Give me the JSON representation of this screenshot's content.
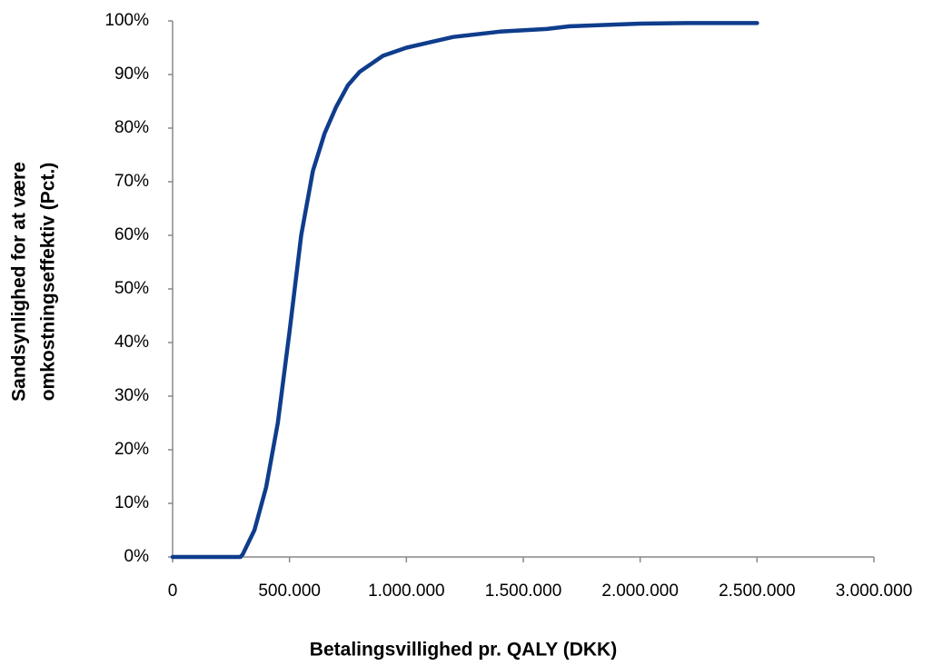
{
  "chart_data": {
    "type": "line",
    "xlabel": "Betalingsvillighed pr. QALY (DKK)",
    "ylabel": [
      "Sandsynlighed for at være",
      "omkostningseffektiv (Pct.)"
    ],
    "x": [
      0,
      100000,
      200000,
      290000,
      300000,
      350000,
      400000,
      450000,
      500000,
      550000,
      600000,
      650000,
      700000,
      750000,
      800000,
      900000,
      1000000,
      1100000,
      1200000,
      1400000,
      1600000,
      1700000,
      2000000,
      2200000,
      2500000
    ],
    "series": [
      {
        "color": "#0f3d8c",
        "values": [
          0,
          0,
          0,
          0,
          0.5,
          5,
          13,
          25,
          42,
          60,
          72,
          79,
          84,
          88,
          90.5,
          93.5,
          95,
          96,
          97,
          98,
          98.5,
          99,
          99.5,
          99.6,
          99.6
        ]
      }
    ],
    "xlim": [
      0,
      3000000
    ],
    "xticks": [
      0,
      {
        "value": 500000,
        "label": "500.000"
      },
      {
        "value": 1000000,
        "label": "1.000.000"
      },
      {
        "value": 1500000,
        "label": "1.500.000"
      },
      {
        "value": 2000000,
        "label": "2.000.000"
      },
      {
        "value": 2500000,
        "label": "2.500.000"
      },
      {
        "value": 3000000,
        "label": "3.000.000"
      }
    ],
    "ylim": [
      0,
      100
    ],
    "yticks": [
      {
        "value": 0,
        "label": "0%"
      },
      {
        "value": 10,
        "label": "10%"
      },
      {
        "value": 20,
        "label": "20%"
      },
      {
        "value": 30,
        "label": "30%"
      },
      {
        "value": 40,
        "label": "40%"
      },
      {
        "value": 50,
        "label": "50%"
      },
      {
        "value": 60,
        "label": "60%"
      },
      {
        "value": 70,
        "label": "70%"
      },
      {
        "value": 80,
        "label": "80%"
      },
      {
        "value": 90,
        "label": "90%"
      },
      {
        "value": 100,
        "label": "100%"
      }
    ]
  }
}
